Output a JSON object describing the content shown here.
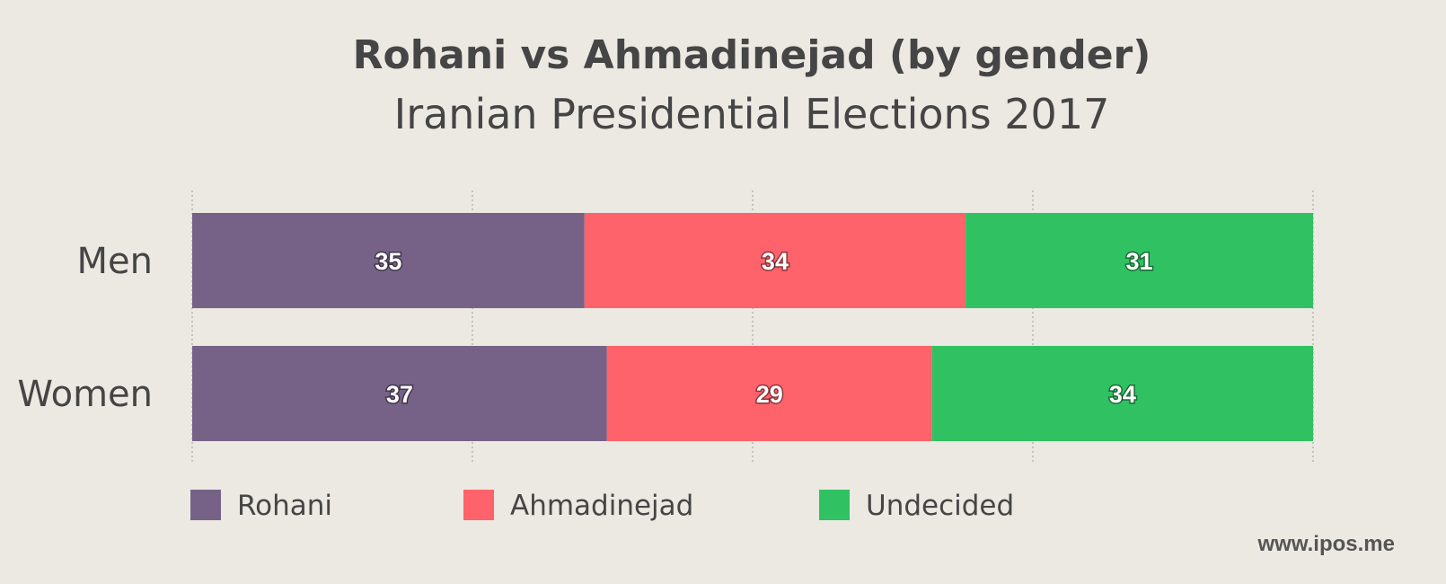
{
  "chart_data": {
    "type": "bar",
    "orientation": "horizontal",
    "stacked": true,
    "title": "Rohani vs Ahmadinejad (by gender)",
    "subtitle": "Iranian Presidential Elections 2017",
    "categories": [
      "Men",
      "Women"
    ],
    "series": [
      {
        "name": "Rohani",
        "color": "#766287",
        "values": [
          35,
          37
        ]
      },
      {
        "name": "Ahmadinejad",
        "color": "#fe626b",
        "values": [
          34,
          29
        ]
      },
      {
        "name": "Undecided",
        "color": "#30c262",
        "values": [
          31,
          34
        ]
      }
    ],
    "xlim": [
      0,
      100
    ],
    "grid": true,
    "legend_position": "bottom",
    "data_labels": true
  },
  "source": "www.ipos.me"
}
